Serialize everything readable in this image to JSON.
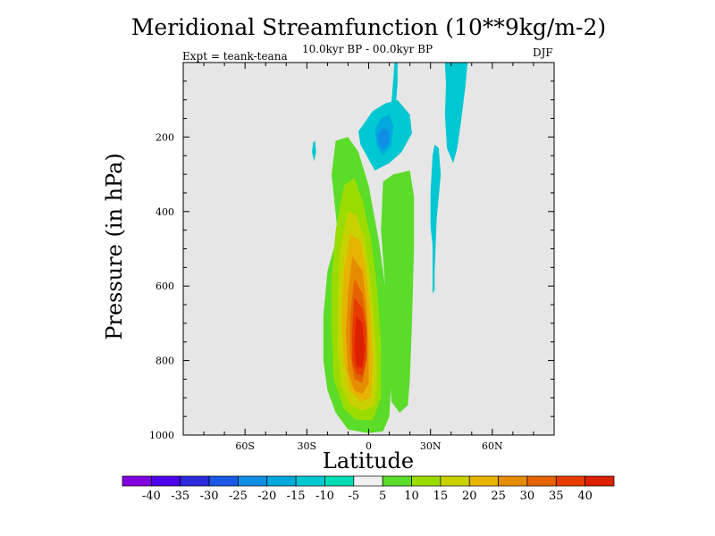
{
  "title": "Meridional Streamfunction (10**9kg/m-2)",
  "subtitle": "10.0kyr BP - 00.0kyr BP",
  "expt_label": "Expt = teank-teana",
  "season": "DJF",
  "chart_data": {
    "type": "heatmap",
    "title": "Meridional Streamfunction (10**9kg/m-2)",
    "subtitle": "10.0kyr BP - 00.0kyr BP",
    "xlabel": "Latitude",
    "ylabel": "Pressure (in hPa)",
    "xlim": [
      -90,
      90
    ],
    "ylim": [
      1000,
      0
    ],
    "x_ticks": [
      {
        "value": -60,
        "label": "60S"
      },
      {
        "value": -30,
        "label": "30S"
      },
      {
        "value": 0,
        "label": "0"
      },
      {
        "value": 30,
        "label": "30N"
      },
      {
        "value": 60,
        "label": "60N"
      }
    ],
    "y_ticks": [
      {
        "value": 200,
        "label": "200"
      },
      {
        "value": 400,
        "label": "400"
      },
      {
        "value": 600,
        "label": "600"
      },
      {
        "value": 800,
        "label": "800"
      },
      {
        "value": 1000,
        "label": "1000"
      }
    ],
    "x_minor_step": 10,
    "y_minor_step": 50,
    "background_color": "#e6e6e6",
    "contour_levels": [
      -40,
      -35,
      -30,
      -25,
      -20,
      -15,
      -10,
      -5,
      5,
      10,
      15,
      20,
      25,
      30,
      35,
      40
    ],
    "colors": [
      "#8000e0",
      "#4b00e8",
      "#2b2bdc",
      "#1a58e6",
      "#0f8ee6",
      "#00aadd",
      "#00c8d2",
      "#00dcb4",
      "#f0f0f0",
      "#5adc28",
      "#9bdc00",
      "#c8d200",
      "#e6b400",
      "#e68c00",
      "#e66400",
      "#e63c00",
      "#dc2000"
    ],
    "features": [
      {
        "name": "positive-cell-5",
        "level": 5,
        "points": [
          [
            -15,
            460
          ],
          [
            -20,
            560
          ],
          [
            -22,
            680
          ],
          [
            -22,
            800
          ],
          [
            -20,
            880
          ],
          [
            -16,
            940
          ],
          [
            -10,
            985
          ],
          [
            0,
            995
          ],
          [
            7,
            990
          ],
          [
            10,
            950
          ],
          [
            11,
            850
          ],
          [
            10,
            700
          ],
          [
            8,
            600
          ],
          [
            5,
            480
          ],
          [
            0,
            330
          ],
          [
            -5,
            240
          ],
          [
            -10,
            200
          ],
          [
            -16,
            210
          ],
          [
            -18,
            300
          ]
        ]
      },
      {
        "name": "positive-cell-10",
        "level": 10,
        "points": [
          [
            -12,
            330
          ],
          [
            -16,
            450
          ],
          [
            -18,
            580
          ],
          [
            -18,
            720
          ],
          [
            -17,
            850
          ],
          [
            -12,
            930
          ],
          [
            -6,
            960
          ],
          [
            2,
            960
          ],
          [
            6,
            900
          ],
          [
            6,
            750
          ],
          [
            4,
            600
          ],
          [
            1,
            470
          ],
          [
            -3,
            370
          ],
          [
            -7,
            310
          ]
        ]
      },
      {
        "name": "positive-cell-15",
        "level": 15,
        "points": [
          [
            -10,
            400
          ],
          [
            -14,
            510
          ],
          [
            -15,
            640
          ],
          [
            -15,
            770
          ],
          [
            -13,
            870
          ],
          [
            -9,
            920
          ],
          [
            -3,
            935
          ],
          [
            3,
            920
          ],
          [
            4,
            840
          ],
          [
            3,
            720
          ],
          [
            1,
            590
          ],
          [
            -2,
            470
          ],
          [
            -6,
            410
          ]
        ]
      },
      {
        "name": "positive-cell-20",
        "level": 20,
        "points": [
          [
            -9,
            460
          ],
          [
            -12,
            560
          ],
          [
            -13,
            680
          ],
          [
            -12,
            800
          ],
          [
            -9,
            880
          ],
          [
            -4,
            910
          ],
          [
            1,
            900
          ],
          [
            2,
            800
          ],
          [
            1,
            680
          ],
          [
            -1,
            570
          ],
          [
            -4,
            480
          ]
        ]
      },
      {
        "name": "positive-cell-25",
        "level": 25,
        "points": [
          [
            -8,
            520
          ],
          [
            -10,
            620
          ],
          [
            -11,
            730
          ],
          [
            -10,
            830
          ],
          [
            -7,
            880
          ],
          [
            -3,
            890
          ],
          [
            0,
            860
          ],
          [
            0,
            760
          ],
          [
            -1,
            650
          ],
          [
            -3,
            560
          ]
        ]
      },
      {
        "name": "positive-cell-30",
        "level": 30,
        "points": [
          [
            -7,
            580
          ],
          [
            -9,
            680
          ],
          [
            -9,
            780
          ],
          [
            -7,
            850
          ],
          [
            -3,
            860
          ],
          [
            -1,
            800
          ],
          [
            -1,
            700
          ],
          [
            -3,
            620
          ]
        ]
      },
      {
        "name": "positive-cell-35",
        "level": 35,
        "points": [
          [
            -7,
            630
          ],
          [
            -8,
            720
          ],
          [
            -8,
            800
          ],
          [
            -6,
            835
          ],
          [
            -3,
            840
          ],
          [
            -1,
            790
          ],
          [
            -1,
            720
          ],
          [
            -3,
            660
          ]
        ]
      },
      {
        "name": "positive-cell-40",
        "level": 40,
        "points": [
          [
            -6,
            680
          ],
          [
            -7,
            760
          ],
          [
            -6,
            815
          ],
          [
            -3,
            820
          ],
          [
            -2,
            770
          ],
          [
            -3,
            700
          ]
        ]
      },
      {
        "name": "north-positive-lobe-5",
        "level": 5,
        "points": [
          [
            7,
            320
          ],
          [
            12,
            300
          ],
          [
            20,
            290
          ],
          [
            22,
            360
          ],
          [
            22,
            500
          ],
          [
            21,
            700
          ],
          [
            20,
            850
          ],
          [
            19,
            920
          ],
          [
            15,
            940
          ],
          [
            11,
            910
          ],
          [
            10,
            780
          ],
          [
            8,
            600
          ],
          [
            6,
            450
          ]
        ]
      },
      {
        "name": "upper-negative-cell-10",
        "level": -10,
        "points": [
          [
            -5,
            185
          ],
          [
            2,
            130
          ],
          [
            8,
            110
          ],
          [
            14,
            100
          ],
          [
            20,
            140
          ],
          [
            21,
            190
          ],
          [
            16,
            240
          ],
          [
            10,
            270
          ],
          [
            3,
            290
          ],
          [
            0,
            260
          ],
          [
            -4,
            220
          ]
        ]
      },
      {
        "name": "upper-negative-cell-15",
        "level": -15,
        "points": [
          [
            3,
            180
          ],
          [
            6,
            150
          ],
          [
            10,
            140
          ],
          [
            12,
            170
          ],
          [
            11,
            220
          ],
          [
            7,
            250
          ],
          [
            4,
            225
          ]
        ]
      },
      {
        "name": "upper-negative-cell-20",
        "level": -20,
        "points": [
          [
            4,
            195
          ],
          [
            7,
            175
          ],
          [
            10,
            185
          ],
          [
            10,
            215
          ],
          [
            7,
            235
          ],
          [
            5,
            220
          ]
        ]
      },
      {
        "name": "negative-plume-10",
        "level": -10,
        "points": [
          [
            11,
            110
          ],
          [
            12,
            40
          ],
          [
            12.5,
            0
          ],
          [
            14,
            0
          ],
          [
            14,
            60
          ],
          [
            13,
            120
          ]
        ]
      },
      {
        "name": "negative-band-10",
        "level": -10,
        "points": [
          [
            37,
            0
          ],
          [
            48,
            0
          ],
          [
            47,
            60
          ],
          [
            45,
            150
          ],
          [
            43,
            230
          ],
          [
            41,
            270
          ],
          [
            38,
            230
          ],
          [
            37,
            140
          ],
          [
            37.5,
            60
          ]
        ]
      },
      {
        "name": "negative-strip-10",
        "level": -10,
        "points": [
          [
            31,
            490
          ],
          [
            30,
            440
          ],
          [
            30,
            350
          ],
          [
            31,
            250
          ],
          [
            32,
            220
          ],
          [
            34,
            230
          ],
          [
            35,
            300
          ],
          [
            33,
            420
          ],
          [
            32,
            560
          ],
          [
            32,
            610
          ],
          [
            31,
            620
          ]
        ]
      },
      {
        "name": "negative-dot-10",
        "level": -10,
        "points": [
          [
            -27.5,
            240
          ],
          [
            -27,
            215
          ],
          [
            -26,
            210
          ],
          [
            -25.5,
            240
          ],
          [
            -26.5,
            265
          ]
        ]
      }
    ]
  }
}
